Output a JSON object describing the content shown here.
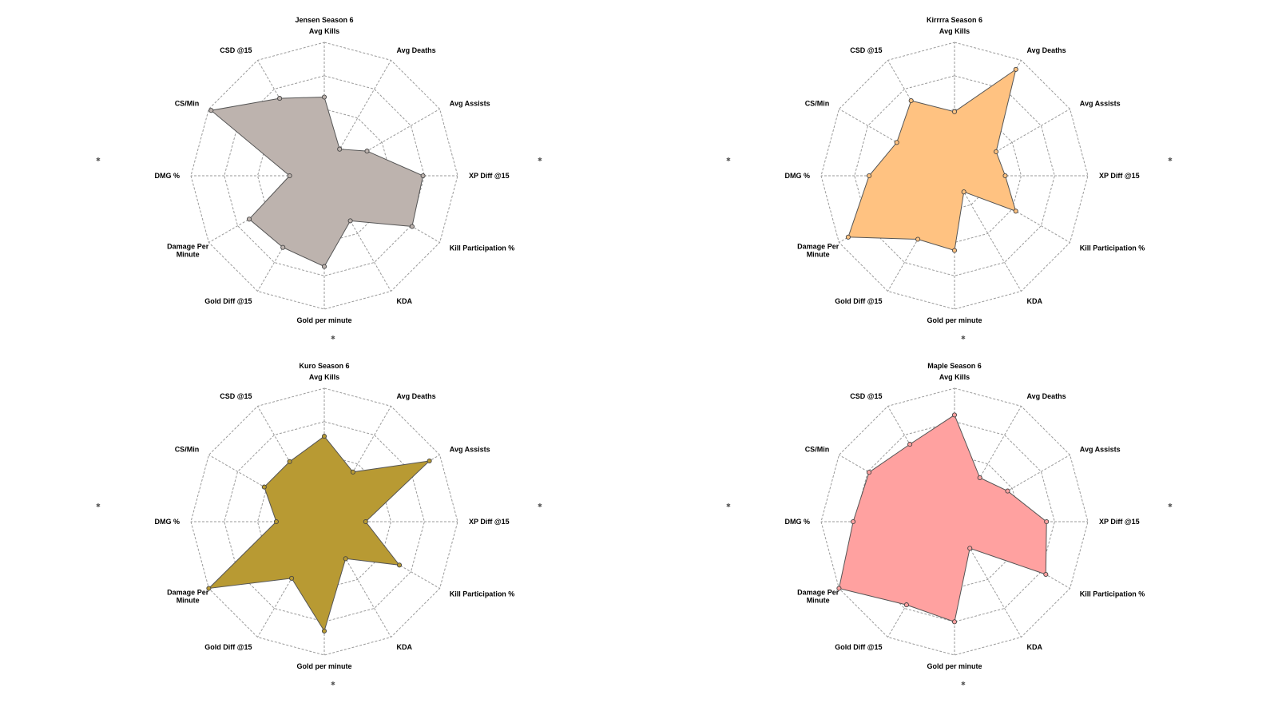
{
  "chart_data": [
    {
      "type": "radar",
      "title": "Jensen Season 6",
      "color": "#bdb3ae",
      "series": [
        {
          "values": [
            0.59,
            0.23,
            0.37,
            0.74,
            0.76,
            0.39,
            0.68,
            0.62,
            0.65,
            0.26,
            0.98,
            0.67
          ]
        }
      ]
    },
    {
      "type": "radar",
      "title": "Kirrrra Season 6",
      "color": "#ffc281",
      "series": [
        {
          "values": [
            0.48,
            0.92,
            0.36,
            0.38,
            0.53,
            0.14,
            0.56,
            0.55,
            0.92,
            0.64,
            0.5,
            0.65
          ]
        }
      ]
    },
    {
      "type": "radar",
      "title": "Kuro Season 6",
      "color": "#b89a33",
      "series": [
        {
          "values": [
            0.64,
            0.43,
            0.91,
            0.31,
            0.65,
            0.32,
            0.82,
            0.49,
            1.0,
            0.36,
            0.52,
            0.52
          ]
        }
      ]
    },
    {
      "type": "radar",
      "title": "Maple Season 6",
      "color": "#ffa1a0",
      "series": [
        {
          "values": [
            0.8,
            0.38,
            0.46,
            0.69,
            0.79,
            0.23,
            0.75,
            0.72,
            1.0,
            0.76,
            0.74,
            0.67
          ]
        }
      ]
    }
  ],
  "axes": [
    "Avg Kills",
    "Avg Deaths",
    "Avg Assists",
    "XP Diff @15",
    "Kill Participation %",
    "KDA",
    "Gold per minute",
    "Gold Diff @15",
    "Damage Per Minute",
    "DMG %",
    "CS/Min",
    "CSD @15"
  ],
  "corner_marks": [
    "✱",
    "✱",
    "✱",
    "✱"
  ]
}
